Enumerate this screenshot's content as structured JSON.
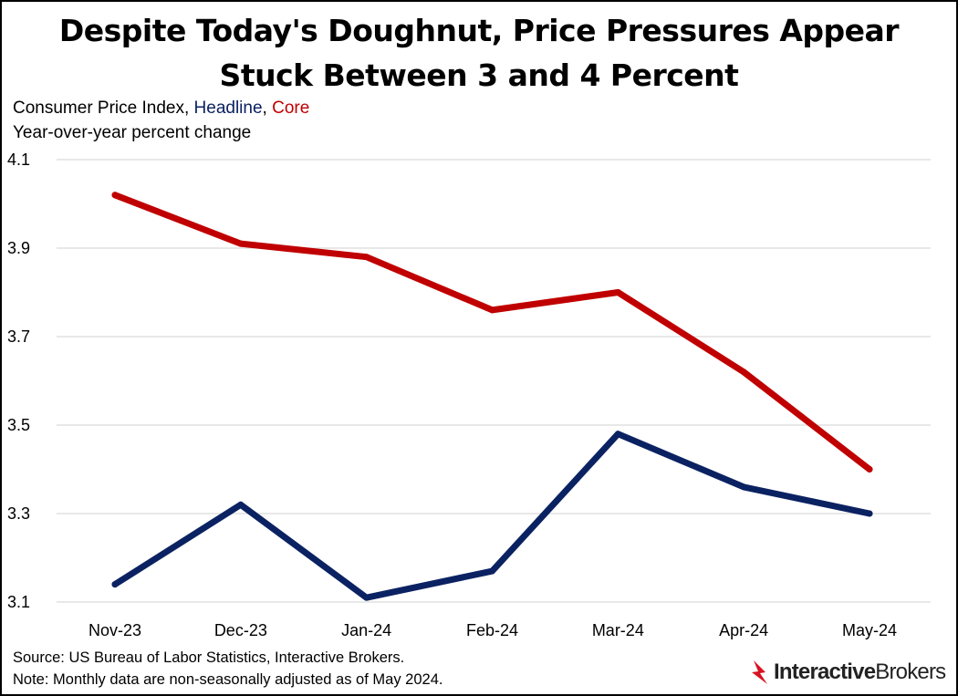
{
  "title": {
    "line1": "Despite Today's Doughnut, Price Pressures Appear",
    "line2": "Stuck Between 3 and 4 Percent"
  },
  "subtitle": {
    "prefix": "Consumer Price Index, ",
    "headline_word": "Headline",
    "separator": ", ",
    "core_word": "Core",
    "line2": "Year-over-year percent change"
  },
  "chart_data": {
    "type": "line",
    "title": "Despite Today's Doughnut, Price Pressures Appear Stuck Between 3 and 4 Percent",
    "ylabel": "Year-over-year percent change",
    "xlabel": "",
    "categories": [
      "Nov-23",
      "Dec-23",
      "Jan-24",
      "Feb-24",
      "Mar-24",
      "Apr-24",
      "May-24"
    ],
    "yticks": [
      "3.1",
      "3.3",
      "3.5",
      "3.7",
      "3.9",
      "4.1"
    ],
    "ylim": [
      3.1,
      4.1
    ],
    "grid": true,
    "series": [
      {
        "name": "Headline",
        "color": "#0b2262",
        "values": [
          3.14,
          3.32,
          3.11,
          3.17,
          3.48,
          3.36,
          3.3
        ]
      },
      {
        "name": "Core",
        "color": "#c00000",
        "values": [
          4.02,
          3.91,
          3.88,
          3.76,
          3.8,
          3.62,
          3.4
        ]
      }
    ]
  },
  "footer": {
    "source": "Source: US Bureau of Labor Statistics, Interactive Brokers.",
    "note": "Note: Monthly data are non-seasonally adjusted as of May 2024."
  },
  "logo": {
    "bold": "Interactive",
    "light": "Brokers",
    "color": "#d81222"
  }
}
